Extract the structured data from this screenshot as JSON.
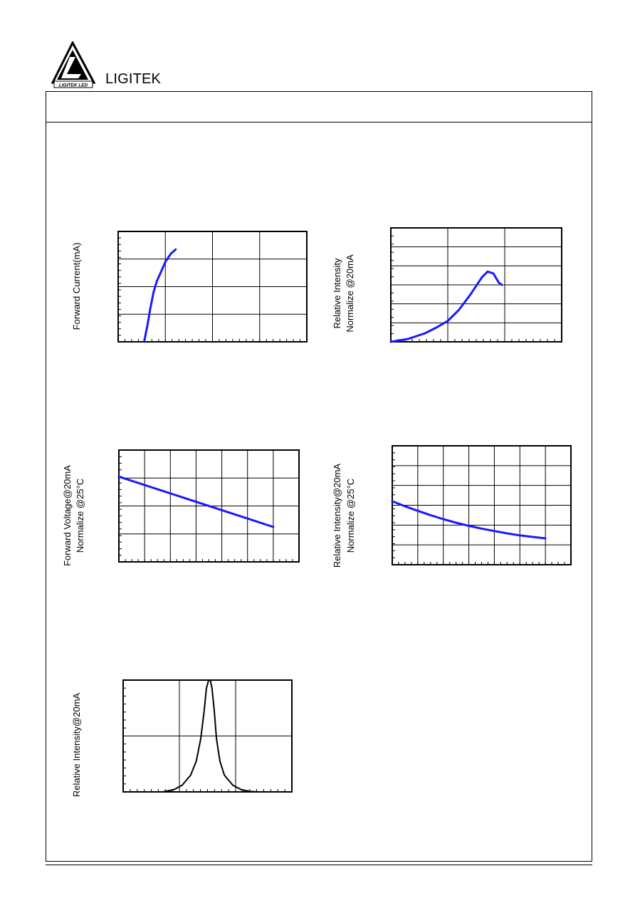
{
  "brand": {
    "name": "LIGITEK",
    "logo_text": "LIGITEK LED"
  },
  "colors": {
    "curve": "#1a1aff",
    "spectrum": "#000000",
    "grid": "#000000"
  },
  "chart_data": [
    {
      "id": "fwd-current",
      "type": "line",
      "ylabel": [
        "Forward Current(mA)"
      ],
      "grid": true,
      "xlim": [
        0,
        4
      ],
      "ylim": [
        0,
        4
      ],
      "series": [
        {
          "x": [
            0.55,
            0.62,
            0.68,
            0.75,
            0.82,
            0.9,
            1.0,
            1.12,
            1.22
          ],
          "y": [
            0.0,
            0.6,
            1.2,
            1.8,
            2.2,
            2.5,
            2.9,
            3.2,
            3.35
          ]
        }
      ]
    },
    {
      "id": "rel-intensity-current",
      "type": "line",
      "ylabel": [
        "Relative Intensity",
        "Normalize @20mA"
      ],
      "grid": true,
      "xlim": [
        0,
        3
      ],
      "ylim": [
        0,
        6
      ],
      "series": [
        {
          "x": [
            0.0,
            0.3,
            0.6,
            0.8,
            1.0,
            1.2,
            1.4,
            1.6,
            1.7,
            1.8,
            1.85,
            1.9,
            1.95
          ],
          "y": [
            0.0,
            0.15,
            0.45,
            0.75,
            1.1,
            1.7,
            2.5,
            3.4,
            3.7,
            3.6,
            3.35,
            3.1,
            3.0
          ]
        }
      ]
    },
    {
      "id": "fwd-voltage-temp",
      "type": "line",
      "ylabel": [
        "Forward Voltage@20mA",
        "Normalize @25°C"
      ],
      "grid": true,
      "xlim": [
        0,
        7
      ],
      "ylim": [
        0,
        4
      ],
      "series": [
        {
          "x": [
            0.0,
            6.0
          ],
          "y": [
            3.05,
            1.25
          ]
        }
      ]
    },
    {
      "id": "rel-intensity-temp",
      "type": "line",
      "ylabel": [
        "Relative Intensity@20mA",
        "Normalize @25°C"
      ],
      "grid": true,
      "xlim": [
        0,
        7
      ],
      "ylim": [
        0,
        6
      ],
      "series": [
        {
          "x": [
            0.0,
            0.5,
            1.0,
            1.5,
            2.0,
            2.5,
            3.0,
            3.5,
            4.0,
            4.5,
            5.0,
            5.5,
            6.0
          ],
          "y": [
            3.2,
            2.95,
            2.72,
            2.5,
            2.3,
            2.12,
            1.96,
            1.82,
            1.7,
            1.58,
            1.48,
            1.4,
            1.33
          ]
        }
      ]
    },
    {
      "id": "spectrum",
      "type": "line",
      "ylabel": [
        "Relative Intensity@20mA"
      ],
      "grid": true,
      "xlim": [
        0,
        3
      ],
      "ylim": [
        0,
        2
      ],
      "series": [
        {
          "x": [
            0.7,
            0.9,
            1.05,
            1.2,
            1.3,
            1.38,
            1.44,
            1.48,
            1.52,
            1.55,
            1.58,
            1.62,
            1.66,
            1.72,
            1.8,
            1.95,
            2.1,
            2.25,
            2.4
          ],
          "y": [
            0.0,
            0.04,
            0.12,
            0.3,
            0.55,
            0.95,
            1.45,
            1.85,
            2.0,
            2.0,
            1.85,
            1.45,
            0.95,
            0.55,
            0.3,
            0.12,
            0.04,
            0.01,
            0.0
          ]
        }
      ]
    }
  ]
}
